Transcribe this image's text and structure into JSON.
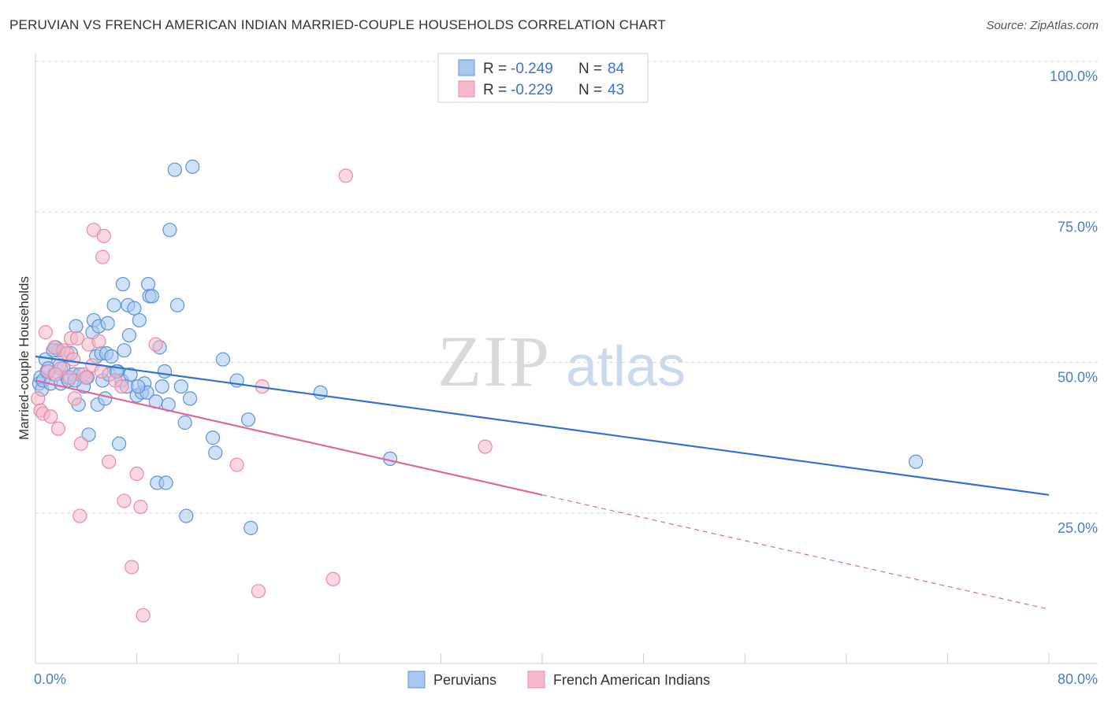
{
  "title": "PERUVIAN VS FRENCH AMERICAN INDIAN MARRIED-COUPLE HOUSEHOLDS CORRELATION CHART",
  "source": "Source: ZipAtlas.com",
  "watermark": {
    "zip": "ZIP",
    "atlas": "atlas"
  },
  "legend": {
    "rows": [
      {
        "r_label": "R =",
        "r_value": "-0.249",
        "n_label": "N =",
        "n_value": "84",
        "color": "#a8c8f0"
      },
      {
        "r_label": "R =",
        "r_value": "-0.229",
        "n_label": "N =",
        "n_value": "43",
        "color": "#f5b8cb"
      }
    ]
  },
  "bottom_legend": [
    {
      "label": "Peruvians",
      "color": "#a8c8f0"
    },
    {
      "label": "French American Indians",
      "color": "#f5b8cb"
    }
  ],
  "chart_data": {
    "type": "scatter",
    "ylabel": "Married-couple Households",
    "xlim": [
      0,
      80
    ],
    "ylim": [
      0,
      100
    ],
    "x_tick_labels": [
      "0.0%",
      "80.0%"
    ],
    "y_ticks": [
      25,
      50,
      75,
      100
    ],
    "y_tick_labels": [
      "25.0%",
      "50.0%",
      "75.0%",
      "100.0%"
    ],
    "grid": true,
    "series": [
      {
        "name": "Peruvians",
        "color": "#5b93d9",
        "fill": "#a8c8f0",
        "trend": {
          "x0": 0,
          "y0": 51.0,
          "x1": 80,
          "y1": 28.0,
          "color": "#2f72d1"
        },
        "points": [
          [
            0.3,
            46.5
          ],
          [
            0.4,
            47.5
          ],
          [
            0.5,
            45.5
          ],
          [
            0.6,
            47.0
          ],
          [
            0.8,
            50.5
          ],
          [
            0.9,
            48.5
          ],
          [
            1.0,
            49.0
          ],
          [
            1.2,
            46.5
          ],
          [
            1.5,
            48.0
          ],
          [
            1.6,
            52.5
          ],
          [
            1.8,
            52.0
          ],
          [
            1.9,
            49.5
          ],
          [
            2.0,
            46.5
          ],
          [
            2.2,
            49.0
          ],
          [
            2.5,
            47.5
          ],
          [
            2.8,
            51.5
          ],
          [
            3.0,
            48.0
          ],
          [
            3.2,
            56.0
          ],
          [
            3.5,
            48.0
          ],
          [
            3.8,
            46.0
          ],
          [
            4.0,
            47.5
          ],
          [
            4.2,
            38.0
          ],
          [
            4.5,
            55.0
          ],
          [
            4.6,
            57.0
          ],
          [
            4.8,
            51.0
          ],
          [
            4.9,
            43.0
          ],
          [
            5.0,
            56.0
          ],
          [
            5.2,
            51.5
          ],
          [
            5.3,
            47.0
          ],
          [
            5.5,
            44.0
          ],
          [
            5.6,
            51.5
          ],
          [
            5.8,
            48.0
          ],
          [
            6.0,
            51.0
          ],
          [
            6.2,
            59.5
          ],
          [
            6.5,
            48.5
          ],
          [
            6.6,
            36.5
          ],
          [
            6.8,
            47.0
          ],
          [
            6.9,
            63.0
          ],
          [
            7.0,
            52.0
          ],
          [
            7.2,
            46.0
          ],
          [
            7.3,
            59.5
          ],
          [
            7.4,
            54.5
          ],
          [
            7.5,
            48.0
          ],
          [
            7.8,
            59.0
          ],
          [
            8.0,
            44.5
          ],
          [
            8.2,
            57.0
          ],
          [
            8.4,
            45.0
          ],
          [
            8.6,
            46.5
          ],
          [
            8.8,
            45.0
          ],
          [
            8.9,
            63.0
          ],
          [
            9.0,
            61.0
          ],
          [
            9.2,
            61.0
          ],
          [
            9.5,
            43.5
          ],
          [
            9.6,
            30.0
          ],
          [
            9.8,
            52.5
          ],
          [
            10.0,
            46.0
          ],
          [
            10.2,
            48.5
          ],
          [
            10.3,
            30.0
          ],
          [
            10.5,
            43.0
          ],
          [
            10.6,
            72.0
          ],
          [
            11.0,
            82.0
          ],
          [
            11.2,
            59.5
          ],
          [
            11.5,
            46.0
          ],
          [
            11.8,
            40.0
          ],
          [
            11.9,
            24.5
          ],
          [
            12.2,
            44.0
          ],
          [
            12.4,
            82.5
          ],
          [
            14.0,
            37.5
          ],
          [
            14.2,
            35.0
          ],
          [
            14.8,
            50.5
          ],
          [
            15.9,
            47.0
          ],
          [
            16.8,
            40.5
          ],
          [
            17.0,
            22.5
          ],
          [
            22.5,
            45.0
          ],
          [
            28.0,
            34.0
          ],
          [
            69.5,
            33.5
          ],
          [
            2.6,
            47.0
          ],
          [
            3.1,
            47.0
          ],
          [
            3.4,
            43.0
          ],
          [
            4.1,
            47.5
          ],
          [
            5.7,
            56.5
          ],
          [
            6.4,
            48.5
          ],
          [
            1.4,
            52.0
          ],
          [
            8.1,
            46.0
          ]
        ]
      },
      {
        "name": "French American Indians",
        "color": "#e88aa8",
        "fill": "#f5b8cb",
        "trend": {
          "x0": 0,
          "y0": 47.0,
          "x1": 40,
          "y1": 28.0,
          "color": "#e06793"
        },
        "trend_dashed": {
          "x0": 40,
          "y0": 28.0,
          "x1": 80,
          "y1": 9.0
        },
        "points": [
          [
            0.2,
            44.0
          ],
          [
            0.4,
            42.0
          ],
          [
            0.6,
            41.5
          ],
          [
            0.8,
            55.0
          ],
          [
            1.0,
            48.5
          ],
          [
            1.2,
            41.0
          ],
          [
            1.5,
            52.5
          ],
          [
            1.8,
            39.0
          ],
          [
            2.0,
            49.0
          ],
          [
            2.2,
            52.0
          ],
          [
            2.5,
            51.5
          ],
          [
            2.8,
            54.0
          ],
          [
            3.0,
            50.5
          ],
          [
            3.1,
            44.0
          ],
          [
            3.3,
            54.0
          ],
          [
            3.5,
            24.5
          ],
          [
            3.6,
            36.5
          ],
          [
            3.8,
            48.0
          ],
          [
            4.0,
            47.5
          ],
          [
            4.2,
            53.0
          ],
          [
            4.5,
            49.5
          ],
          [
            4.6,
            72.0
          ],
          [
            5.0,
            53.5
          ],
          [
            5.2,
            48.5
          ],
          [
            5.3,
            67.5
          ],
          [
            5.4,
            71.0
          ],
          [
            5.8,
            33.5
          ],
          [
            6.3,
            47.0
          ],
          [
            6.8,
            46.0
          ],
          [
            7.0,
            27.0
          ],
          [
            7.6,
            16.0
          ],
          [
            8.0,
            31.5
          ],
          [
            8.3,
            26.0
          ],
          [
            8.5,
            8.0
          ],
          [
            9.5,
            53.0
          ],
          [
            15.9,
            33.0
          ],
          [
            17.6,
            12.0
          ],
          [
            17.9,
            46.0
          ],
          [
            23.5,
            14.0
          ],
          [
            24.5,
            81.0
          ],
          [
            35.5,
            36.0
          ],
          [
            1.6,
            48.0
          ],
          [
            2.7,
            47.5
          ]
        ]
      }
    ]
  }
}
